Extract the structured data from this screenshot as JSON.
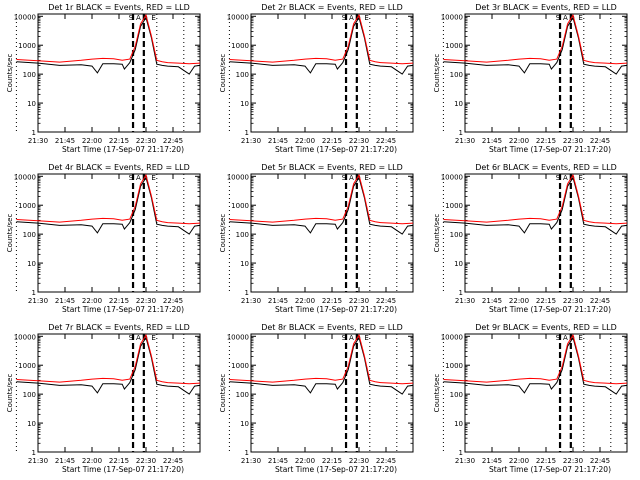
{
  "chart_data": [
    {
      "type": "line",
      "title": "Det 1r BLACK = Events, RED = LLD"
    },
    {
      "type": "line",
      "title": "Det 2r BLACK = Events, RED = LLD"
    },
    {
      "type": "line",
      "title": "Det 3r BLACK = Events, RED = LLD"
    },
    {
      "type": "line",
      "title": "Det 4r BLACK = Events, RED = LLD"
    },
    {
      "type": "line",
      "title": "Det 5r BLACK = Events, RED = LLD"
    },
    {
      "type": "line",
      "title": "Det 6r BLACK = Events, RED = LLD"
    },
    {
      "type": "line",
      "title": "Det 7r BLACK = Events, RED = LLD"
    },
    {
      "type": "line",
      "title": "Det 8r BLACK = Events, RED = LLD"
    },
    {
      "type": "line",
      "title": "Det 9r BLACK = Events, RED = LLD"
    }
  ],
  "shared": {
    "xlabel": "Start Time (17-Sep-07 21:17:20)",
    "ylabel": "Counts/sec",
    "x_range_min": [
      21.5,
      23.0
    ],
    "x_ticks": [
      21.5,
      21.75,
      22.0,
      22.25,
      22.5,
      22.75
    ],
    "x_tick_labels": [
      "21:30",
      "21:45",
      "22:00",
      "22:15",
      "22:30",
      "22:45"
    ],
    "y_scale": "log",
    "ylim": [
      1,
      12000
    ],
    "y_ticks": [
      1,
      10,
      100,
      1000,
      10000
    ],
    "y_tick_labels": [
      "1",
      "10",
      "100",
      "1000",
      "10000"
    ],
    "dotted_vlines_x": [
      21.3,
      22.6,
      22.85
    ],
    "dashed_vlines_x": [
      22.38,
      22.48
    ],
    "flag_labels": [
      "S",
      "A",
      "D",
      "E"
    ],
    "series": [
      {
        "name": "Events",
        "color": "#000000",
        "x": [
          21.3,
          21.5,
          21.7,
          21.9,
          22.0,
          22.05,
          22.1,
          22.2,
          22.28,
          22.3,
          22.35,
          22.4,
          22.45,
          22.5,
          22.55,
          22.6,
          22.65,
          22.7,
          22.8,
          22.9,
          22.95,
          23.0
        ],
        "y": [
          270,
          240,
          200,
          210,
          190,
          110,
          230,
          230,
          220,
          150,
          250,
          700,
          4500,
          9000,
          1800,
          220,
          200,
          190,
          180,
          100,
          190,
          200
        ]
      },
      {
        "name": "LLD",
        "color": "#ff0000",
        "x": [
          21.3,
          21.5,
          21.7,
          21.9,
          22.0,
          22.1,
          22.2,
          22.28,
          22.35,
          22.4,
          22.45,
          22.5,
          22.55,
          22.6,
          22.65,
          22.7,
          22.8,
          22.9,
          23.0
        ],
        "y": [
          320,
          290,
          260,
          300,
          330,
          350,
          340,
          300,
          330,
          900,
          5500,
          11000,
          2100,
          300,
          270,
          250,
          240,
          230,
          240
        ]
      }
    ]
  }
}
